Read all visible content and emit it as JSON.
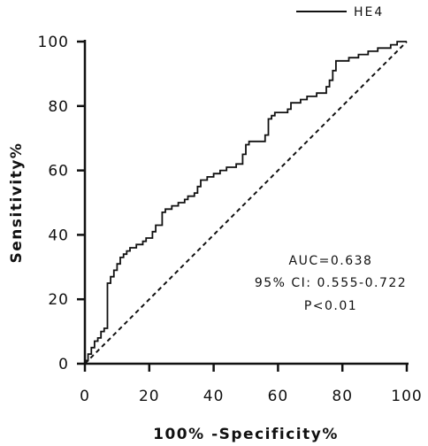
{
  "chart_data": {
    "type": "line",
    "xlabel": "100%  -Specificity%",
    "ylabel": "Sensitivity%",
    "xlim": [
      0,
      100
    ],
    "ylim": [
      0,
      100
    ],
    "xticks": [
      "0",
      "20",
      "40",
      "60",
      "80",
      "100"
    ],
    "yticks": [
      "0",
      "20",
      "40",
      "60",
      "80",
      "100"
    ],
    "grid": false,
    "legend_position": "top-right",
    "annotations": [
      "AUC=0.638",
      "95% CI:  0.555-0.722",
      "P<0.01"
    ],
    "series": [
      {
        "name": "HE4",
        "style": "solid",
        "x": [
          0,
          0,
          1,
          1,
          2,
          2,
          3,
          3,
          4,
          4,
          5,
          5,
          6,
          6,
          7,
          7,
          8,
          8,
          9,
          9,
          10,
          10,
          11,
          11,
          12,
          12,
          13,
          13,
          14,
          14,
          16,
          16,
          18,
          18,
          19,
          19,
          21,
          21,
          22,
          22,
          24,
          24,
          25,
          25,
          27,
          27,
          29,
          29,
          31,
          31,
          32,
          32,
          34,
          34,
          35,
          35,
          36,
          36,
          38,
          38,
          40,
          40,
          42,
          42,
          44,
          44,
          47,
          47,
          49,
          49,
          50,
          50,
          51,
          51,
          56,
          56,
          57,
          57,
          58,
          58,
          59,
          59,
          63,
          63,
          64,
          64,
          67,
          67,
          69,
          69,
          72,
          72,
          75,
          75,
          76,
          76,
          77,
          77,
          78,
          78,
          82,
          82,
          85,
          85,
          88,
          88,
          91,
          91,
          95,
          95,
          97,
          97,
          100
        ],
        "y": [
          0,
          1,
          1,
          3,
          3,
          5,
          5,
          7,
          7,
          8,
          8,
          10,
          10,
          11,
          11,
          25,
          25,
          27,
          27,
          29,
          29,
          31,
          31,
          33,
          33,
          34,
          34,
          35,
          35,
          36,
          36,
          37,
          37,
          38,
          38,
          39,
          39,
          41,
          41,
          43,
          43,
          47,
          47,
          48,
          48,
          49,
          49,
          50,
          50,
          51,
          51,
          52,
          52,
          53,
          53,
          55,
          55,
          57,
          57,
          58,
          58,
          59,
          59,
          60,
          60,
          61,
          61,
          62,
          62,
          65,
          65,
          68,
          68,
          69,
          69,
          71,
          71,
          76,
          76,
          77,
          77,
          78,
          78,
          79,
          79,
          81,
          81,
          82,
          82,
          83,
          83,
          84,
          84,
          86,
          86,
          88,
          88,
          91,
          91,
          94,
          94,
          95,
          95,
          96,
          96,
          97,
          97,
          98,
          98,
          99,
          99,
          100,
          100
        ]
      },
      {
        "name": "",
        "style": "dashed",
        "x": [
          0,
          100
        ],
        "y": [
          0,
          100
        ]
      }
    ]
  }
}
